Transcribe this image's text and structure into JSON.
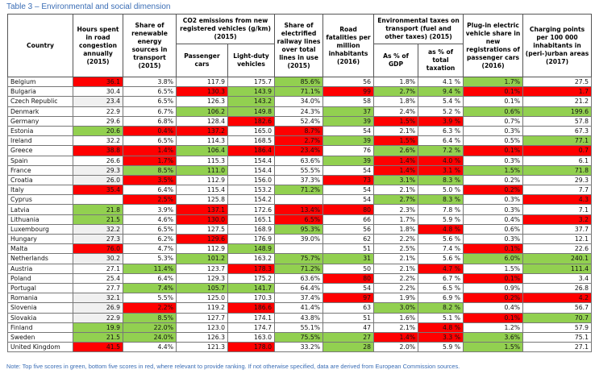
{
  "title": "Table 3 – Environmental and social dimension",
  "headers": {
    "country": "Country",
    "hours": "Hours spent in road congestion annually (2015)",
    "renewable": "Share of renewable energy sources in transport (2015)",
    "co2_group": "CO2 emissions from new registered vehicles (g/km) (2015)",
    "co2_passenger": "Passenger cars",
    "co2_light": "Light-duty vehicles",
    "rail": "Share of electrified railway lines over total lines in use (2015)",
    "fatalities": "Road fatalities per million inhabitants (2016)",
    "taxes_group": "Environmental taxes on transport (fuel and other taxes) (2015)",
    "taxes_gdp": "As % of GDP",
    "taxes_total": "as % of total taxation",
    "plugin": "Plug-in electric vehicle share in new registrations of passenger cars (2016)",
    "charging": "Charging points per 100 000 inhabitants in (peri-)urban areas (2017)"
  },
  "legend_colors": {
    "top_five": "#92d050",
    "bottom_five": "#ff0000",
    "shaded": "#f0f0f0"
  },
  "rows": [
    {
      "country": "Belgium",
      "cells": [
        [
          "36.1",
          "r"
        ],
        [
          "3.8%",
          ""
        ],
        [
          "117.9",
          ""
        ],
        [
          "175.7",
          ""
        ],
        [
          "85.6%",
          "g"
        ],
        [
          "56",
          ""
        ],
        [
          "1.8%",
          ""
        ],
        [
          "4.1 %",
          ""
        ],
        [
          "1.7%",
          "g"
        ],
        [
          "27.5",
          ""
        ]
      ]
    },
    {
      "country": "Bulgaria",
      "cells": [
        [
          "30.4",
          ""
        ],
        [
          "6.5%",
          ""
        ],
        [
          "130.3",
          "r"
        ],
        [
          "143.9",
          "g"
        ],
        [
          "71.1%",
          "g"
        ],
        [
          "99",
          "r"
        ],
        [
          "2.7%",
          "g"
        ],
        [
          "9.4 %",
          "g"
        ],
        [
          "0.1%",
          "r"
        ],
        [
          "1.7",
          "r"
        ]
      ]
    },
    {
      "country": "Czech Republic",
      "cells": [
        [
          "23.4",
          "x"
        ],
        [
          "6.5%",
          ""
        ],
        [
          "126.3",
          ""
        ],
        [
          "143.2",
          "g"
        ],
        [
          "34.0%",
          ""
        ],
        [
          "58",
          ""
        ],
        [
          "1.8%",
          ""
        ],
        [
          "5.4 %",
          ""
        ],
        [
          "0.1%",
          ""
        ],
        [
          "21.2",
          ""
        ]
      ]
    },
    {
      "country": "Denmark",
      "cells": [
        [
          "22.9",
          ""
        ],
        [
          "6.7%",
          ""
        ],
        [
          "106.2",
          "g"
        ],
        [
          "149.8",
          "g"
        ],
        [
          "24.3%",
          ""
        ],
        [
          "37",
          "g"
        ],
        [
          "2.4%",
          ""
        ],
        [
          "5.2 %",
          ""
        ],
        [
          "0.6%",
          "g"
        ],
        [
          "199.6",
          "g"
        ]
      ]
    },
    {
      "country": "Germany",
      "cells": [
        [
          "29.6",
          ""
        ],
        [
          "6.8%",
          ""
        ],
        [
          "128.4",
          ""
        ],
        [
          "182.6",
          "r"
        ],
        [
          "52.4%",
          ""
        ],
        [
          "39",
          "g"
        ],
        [
          "1.5%",
          "r"
        ],
        [
          "3.9 %",
          "r"
        ],
        [
          "0.7%",
          ""
        ],
        [
          "57.8",
          ""
        ]
      ]
    },
    {
      "country": "Estonia",
      "cells": [
        [
          "20.6",
          "g"
        ],
        [
          "0.4%",
          "r"
        ],
        [
          "137.2",
          "r"
        ],
        [
          "165.0",
          ""
        ],
        [
          "8.7%",
          "r"
        ],
        [
          "54",
          ""
        ],
        [
          "2.1%",
          ""
        ],
        [
          "6.3 %",
          ""
        ],
        [
          "0.3%",
          ""
        ],
        [
          "67.3",
          ""
        ]
      ]
    },
    {
      "country": "Ireland",
      "cells": [
        [
          "32.2",
          ""
        ],
        [
          "6.5%",
          ""
        ],
        [
          "114.3",
          ""
        ],
        [
          "168.5",
          ""
        ],
        [
          "2.7%",
          "r"
        ],
        [
          "39",
          "g"
        ],
        [
          "1.5%",
          "r"
        ],
        [
          "6.4 %",
          ""
        ],
        [
          "0.5%",
          ""
        ],
        [
          "77.1",
          "g"
        ]
      ]
    },
    {
      "country": "Greece",
      "cells": [
        [
          "38.8",
          "r"
        ],
        [
          "1.4%",
          "r"
        ],
        [
          "106.4",
          "g"
        ],
        [
          "186.4",
          "r"
        ],
        [
          "23.4%",
          "r"
        ],
        [
          "76",
          ""
        ],
        [
          "2.6%",
          "g"
        ],
        [
          "7.2 %",
          "g"
        ],
        [
          "0.1%",
          "r"
        ],
        [
          "0.7",
          "r"
        ]
      ]
    },
    {
      "country": "Spain",
      "cells": [
        [
          "26.6",
          ""
        ],
        [
          "1.7%",
          "r"
        ],
        [
          "115.3",
          ""
        ],
        [
          "154.4",
          ""
        ],
        [
          "63.6%",
          ""
        ],
        [
          "39",
          "g"
        ],
        [
          "1.4%",
          "r"
        ],
        [
          "4.0 %",
          "r"
        ],
        [
          "0.3%",
          ""
        ],
        [
          "6.1",
          ""
        ]
      ]
    },
    {
      "country": "France",
      "cells": [
        [
          "29.3",
          "x"
        ],
        [
          "8.5%",
          "g"
        ],
        [
          "111.0",
          "g"
        ],
        [
          "154.4",
          ""
        ],
        [
          "55.5%",
          ""
        ],
        [
          "54",
          ""
        ],
        [
          "1.4%",
          "r"
        ],
        [
          "3.1 %",
          "r"
        ],
        [
          "1.5%",
          "g"
        ],
        [
          "71.8",
          "g"
        ]
      ]
    },
    {
      "country": "Croatia",
      "cells": [
        [
          "26.0",
          "x"
        ],
        [
          "3.5%",
          "r"
        ],
        [
          "112.9",
          ""
        ],
        [
          "156.0",
          ""
        ],
        [
          "37.3%",
          ""
        ],
        [
          "73",
          "r"
        ],
        [
          "3.1%",
          "g"
        ],
        [
          "8.3 %",
          "g"
        ],
        [
          "0.2%",
          ""
        ],
        [
          "29.3",
          ""
        ]
      ]
    },
    {
      "country": "Italy",
      "cells": [
        [
          "35.4",
          "r"
        ],
        [
          "6.4%",
          ""
        ],
        [
          "115.4",
          ""
        ],
        [
          "153.2",
          ""
        ],
        [
          "71.2%",
          "g"
        ],
        [
          "54",
          ""
        ],
        [
          "2.1%",
          ""
        ],
        [
          "5.0 %",
          ""
        ],
        [
          "0.2%",
          "r"
        ],
        [
          "7.7",
          ""
        ]
      ]
    },
    {
      "country": "Cyprus",
      "cells": [
        [
          "",
          ""
        ],
        [
          "2.5%",
          "r"
        ],
        [
          "125.8",
          ""
        ],
        [
          "154.2",
          ""
        ],
        [
          "",
          ""
        ],
        [
          "54",
          ""
        ],
        [
          "2.7%",
          "g"
        ],
        [
          "8.3 %",
          "g"
        ],
        [
          "0.3%",
          ""
        ],
        [
          "4.3",
          "r"
        ]
      ]
    },
    {
      "country": "Latvia",
      "cells": [
        [
          "21.8",
          "g"
        ],
        [
          "3.9%",
          ""
        ],
        [
          "137.1",
          "r"
        ],
        [
          "172.6",
          ""
        ],
        [
          "13.4%",
          "r"
        ],
        [
          "80",
          "r"
        ],
        [
          "2.3%",
          ""
        ],
        [
          "7.8 %",
          ""
        ],
        [
          "0.3%",
          ""
        ],
        [
          "7.1",
          ""
        ]
      ]
    },
    {
      "country": "Lithuania",
      "cells": [
        [
          "21.5",
          "g"
        ],
        [
          "4.6%",
          ""
        ],
        [
          "130.0",
          "r"
        ],
        [
          "165.1",
          ""
        ],
        [
          "6.5%",
          "r"
        ],
        [
          "66",
          ""
        ],
        [
          "1.7%",
          ""
        ],
        [
          "5.9 %",
          ""
        ],
        [
          "0.4%",
          ""
        ],
        [
          "3.2",
          "r"
        ]
      ]
    },
    {
      "country": "Luxembourg",
      "cells": [
        [
          "32.2",
          "x"
        ],
        [
          "6.5%",
          ""
        ],
        [
          "127.5",
          ""
        ],
        [
          "168.9",
          ""
        ],
        [
          "95.3%",
          "g"
        ],
        [
          "56",
          ""
        ],
        [
          "1.8%",
          ""
        ],
        [
          "4.8 %",
          "r"
        ],
        [
          "0.6%",
          ""
        ],
        [
          "37.7",
          ""
        ]
      ]
    },
    {
      "country": "Hungary",
      "cells": [
        [
          "27.3",
          "x"
        ],
        [
          "6.2%",
          ""
        ],
        [
          "129.6",
          "r"
        ],
        [
          "176.9",
          ""
        ],
        [
          "39.0%",
          ""
        ],
        [
          "62",
          ""
        ],
        [
          "2.2%",
          ""
        ],
        [
          "5.6 %",
          ""
        ],
        [
          "0.3%",
          ""
        ],
        [
          "12.1",
          ""
        ]
      ]
    },
    {
      "country": "Malta",
      "cells": [
        [
          "76.0",
          "r"
        ],
        [
          "4.7%",
          ""
        ],
        [
          "112.9",
          ""
        ],
        [
          "148.9",
          "g"
        ],
        [
          "",
          ""
        ],
        [
          "51",
          ""
        ],
        [
          "2.5%",
          ""
        ],
        [
          "7.4 %",
          ""
        ],
        [
          "0.1%",
          "r"
        ],
        [
          "22.6",
          ""
        ]
      ]
    },
    {
      "country": "Netherlands",
      "cells": [
        [
          "30.2",
          "x"
        ],
        [
          "5.3%",
          ""
        ],
        [
          "101.2",
          "g"
        ],
        [
          "163.2",
          ""
        ],
        [
          "75.7%",
          "g"
        ],
        [
          "31",
          "g"
        ],
        [
          "2.1%",
          ""
        ],
        [
          "5.6 %",
          ""
        ],
        [
          "6.0%",
          "g"
        ],
        [
          "240.1",
          "g"
        ]
      ]
    },
    {
      "country": "Austria",
      "cells": [
        [
          "27.1",
          ""
        ],
        [
          "11.4%",
          "g"
        ],
        [
          "123.7",
          ""
        ],
        [
          "178.3",
          "r"
        ],
        [
          "71.2%",
          "g"
        ],
        [
          "50",
          ""
        ],
        [
          "2.1%",
          ""
        ],
        [
          "4.7 %",
          "r"
        ],
        [
          "1.5%",
          ""
        ],
        [
          "111.4",
          "g"
        ]
      ]
    },
    {
      "country": "Poland",
      "cells": [
        [
          "25.4",
          ""
        ],
        [
          "6.4%",
          ""
        ],
        [
          "129.3",
          ""
        ],
        [
          "175.2",
          ""
        ],
        [
          "63.6%",
          ""
        ],
        [
          "80",
          "r"
        ],
        [
          "2.2%",
          ""
        ],
        [
          "6.7 %",
          ""
        ],
        [
          "0.1%",
          "r"
        ],
        [
          "3.4",
          ""
        ]
      ]
    },
    {
      "country": "Portugal",
      "cells": [
        [
          "27.7",
          ""
        ],
        [
          "7.4%",
          "g"
        ],
        [
          "105.7",
          "g"
        ],
        [
          "141.7",
          "g"
        ],
        [
          "64.4%",
          ""
        ],
        [
          "54",
          ""
        ],
        [
          "2.2%",
          ""
        ],
        [
          "6.5 %",
          ""
        ],
        [
          "0.9%",
          ""
        ],
        [
          "26.8",
          ""
        ]
      ]
    },
    {
      "country": "Romania",
      "cells": [
        [
          "32.1",
          "x"
        ],
        [
          "5.5%",
          ""
        ],
        [
          "125.0",
          ""
        ],
        [
          "170.3",
          ""
        ],
        [
          "37.4%",
          ""
        ],
        [
          "97",
          "r"
        ],
        [
          "1.9%",
          ""
        ],
        [
          "6.9 %",
          ""
        ],
        [
          "0.2%",
          "r"
        ],
        [
          "4.2",
          "r"
        ]
      ]
    },
    {
      "country": "Slovenia",
      "cells": [
        [
          "26.9",
          "x"
        ],
        [
          "2.2%",
          "r"
        ],
        [
          "119.2",
          ""
        ],
        [
          "186.6",
          "r"
        ],
        [
          "41.4%",
          ""
        ],
        [
          "63",
          ""
        ],
        [
          "3.0%",
          "g"
        ],
        [
          "8.2 %",
          "g"
        ],
        [
          "0.4%",
          ""
        ],
        [
          "56.7",
          ""
        ]
      ]
    },
    {
      "country": "Slovakia",
      "cells": [
        [
          "22.9",
          "x"
        ],
        [
          "8.5%",
          "g"
        ],
        [
          "127.7",
          ""
        ],
        [
          "174.1",
          ""
        ],
        [
          "43.8%",
          ""
        ],
        [
          "51",
          ""
        ],
        [
          "1.6%",
          ""
        ],
        [
          "5.1 %",
          ""
        ],
        [
          "0.1%",
          "r"
        ],
        [
          "70.7",
          "g"
        ]
      ]
    },
    {
      "country": "Finland",
      "cells": [
        [
          "19.9",
          "g"
        ],
        [
          "22.0%",
          "g"
        ],
        [
          "123.0",
          ""
        ],
        [
          "174.7",
          ""
        ],
        [
          "55.1%",
          ""
        ],
        [
          "47",
          ""
        ],
        [
          "2.1%",
          ""
        ],
        [
          "4.8 %",
          "r"
        ],
        [
          "1.2%",
          ""
        ],
        [
          "57.9",
          ""
        ]
      ]
    },
    {
      "country": "Sweden",
      "cells": [
        [
          "21.5",
          "g"
        ],
        [
          "24.0%",
          "g"
        ],
        [
          "126.3",
          ""
        ],
        [
          "163.0",
          ""
        ],
        [
          "75.5%",
          "g"
        ],
        [
          "27",
          "g"
        ],
        [
          "1.4%",
          "r"
        ],
        [
          "3.3 %",
          "r"
        ],
        [
          "3.6%",
          "g"
        ],
        [
          "75.1",
          ""
        ]
      ]
    },
    {
      "country": "United Kingdom",
      "cells": [
        [
          "41.5",
          "r"
        ],
        [
          "4.4%",
          ""
        ],
        [
          "121.3",
          ""
        ],
        [
          "178.0",
          "r"
        ],
        [
          "33.2%",
          ""
        ],
        [
          "28",
          "g"
        ],
        [
          "2.0%",
          ""
        ],
        [
          "5.9 %",
          ""
        ],
        [
          "1.5%",
          "g"
        ],
        [
          "27.1",
          ""
        ]
      ]
    }
  ],
  "note": "Note: Top five scores in green, bottom five scores in red, where relevant to provide ranking. If not otherwise specified, data are derived from European Commission sources."
}
